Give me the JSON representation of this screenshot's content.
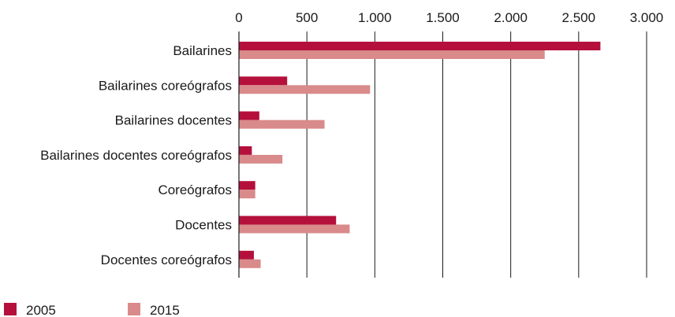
{
  "chart_data": {
    "type": "bar",
    "orientation": "horizontal",
    "title": "",
    "xlabel": "",
    "ylabel": "",
    "xlim": [
      0,
      3000
    ],
    "grid": true,
    "legend_position": "bottom-left",
    "ticks": [
      {
        "value": 0,
        "label": "0"
      },
      {
        "value": 500,
        "label": "500"
      },
      {
        "value": 1000,
        "label": "1.000"
      },
      {
        "value": 1500,
        "label": "1.500"
      },
      {
        "value": 2000,
        "label": "2.000"
      },
      {
        "value": 2500,
        "label": "2.500"
      },
      {
        "value": 3000,
        "label": "3.000"
      }
    ],
    "categories": [
      "Bailarines",
      "Bailarines coreógrafos",
      "Bailarines docentes",
      "Bailarines docentes coreógrafos",
      "Coreógrafos",
      "Docentes",
      "Docentes coreógrafos"
    ],
    "series": [
      {
        "name": "2005",
        "color": "#b5103c",
        "values": [
          2660,
          355,
          150,
          95,
          120,
          715,
          110
        ]
      },
      {
        "name": "2015",
        "color": "#d98a8a",
        "values": [
          2250,
          965,
          630,
          320,
          120,
          815,
          160
        ]
      }
    ]
  }
}
